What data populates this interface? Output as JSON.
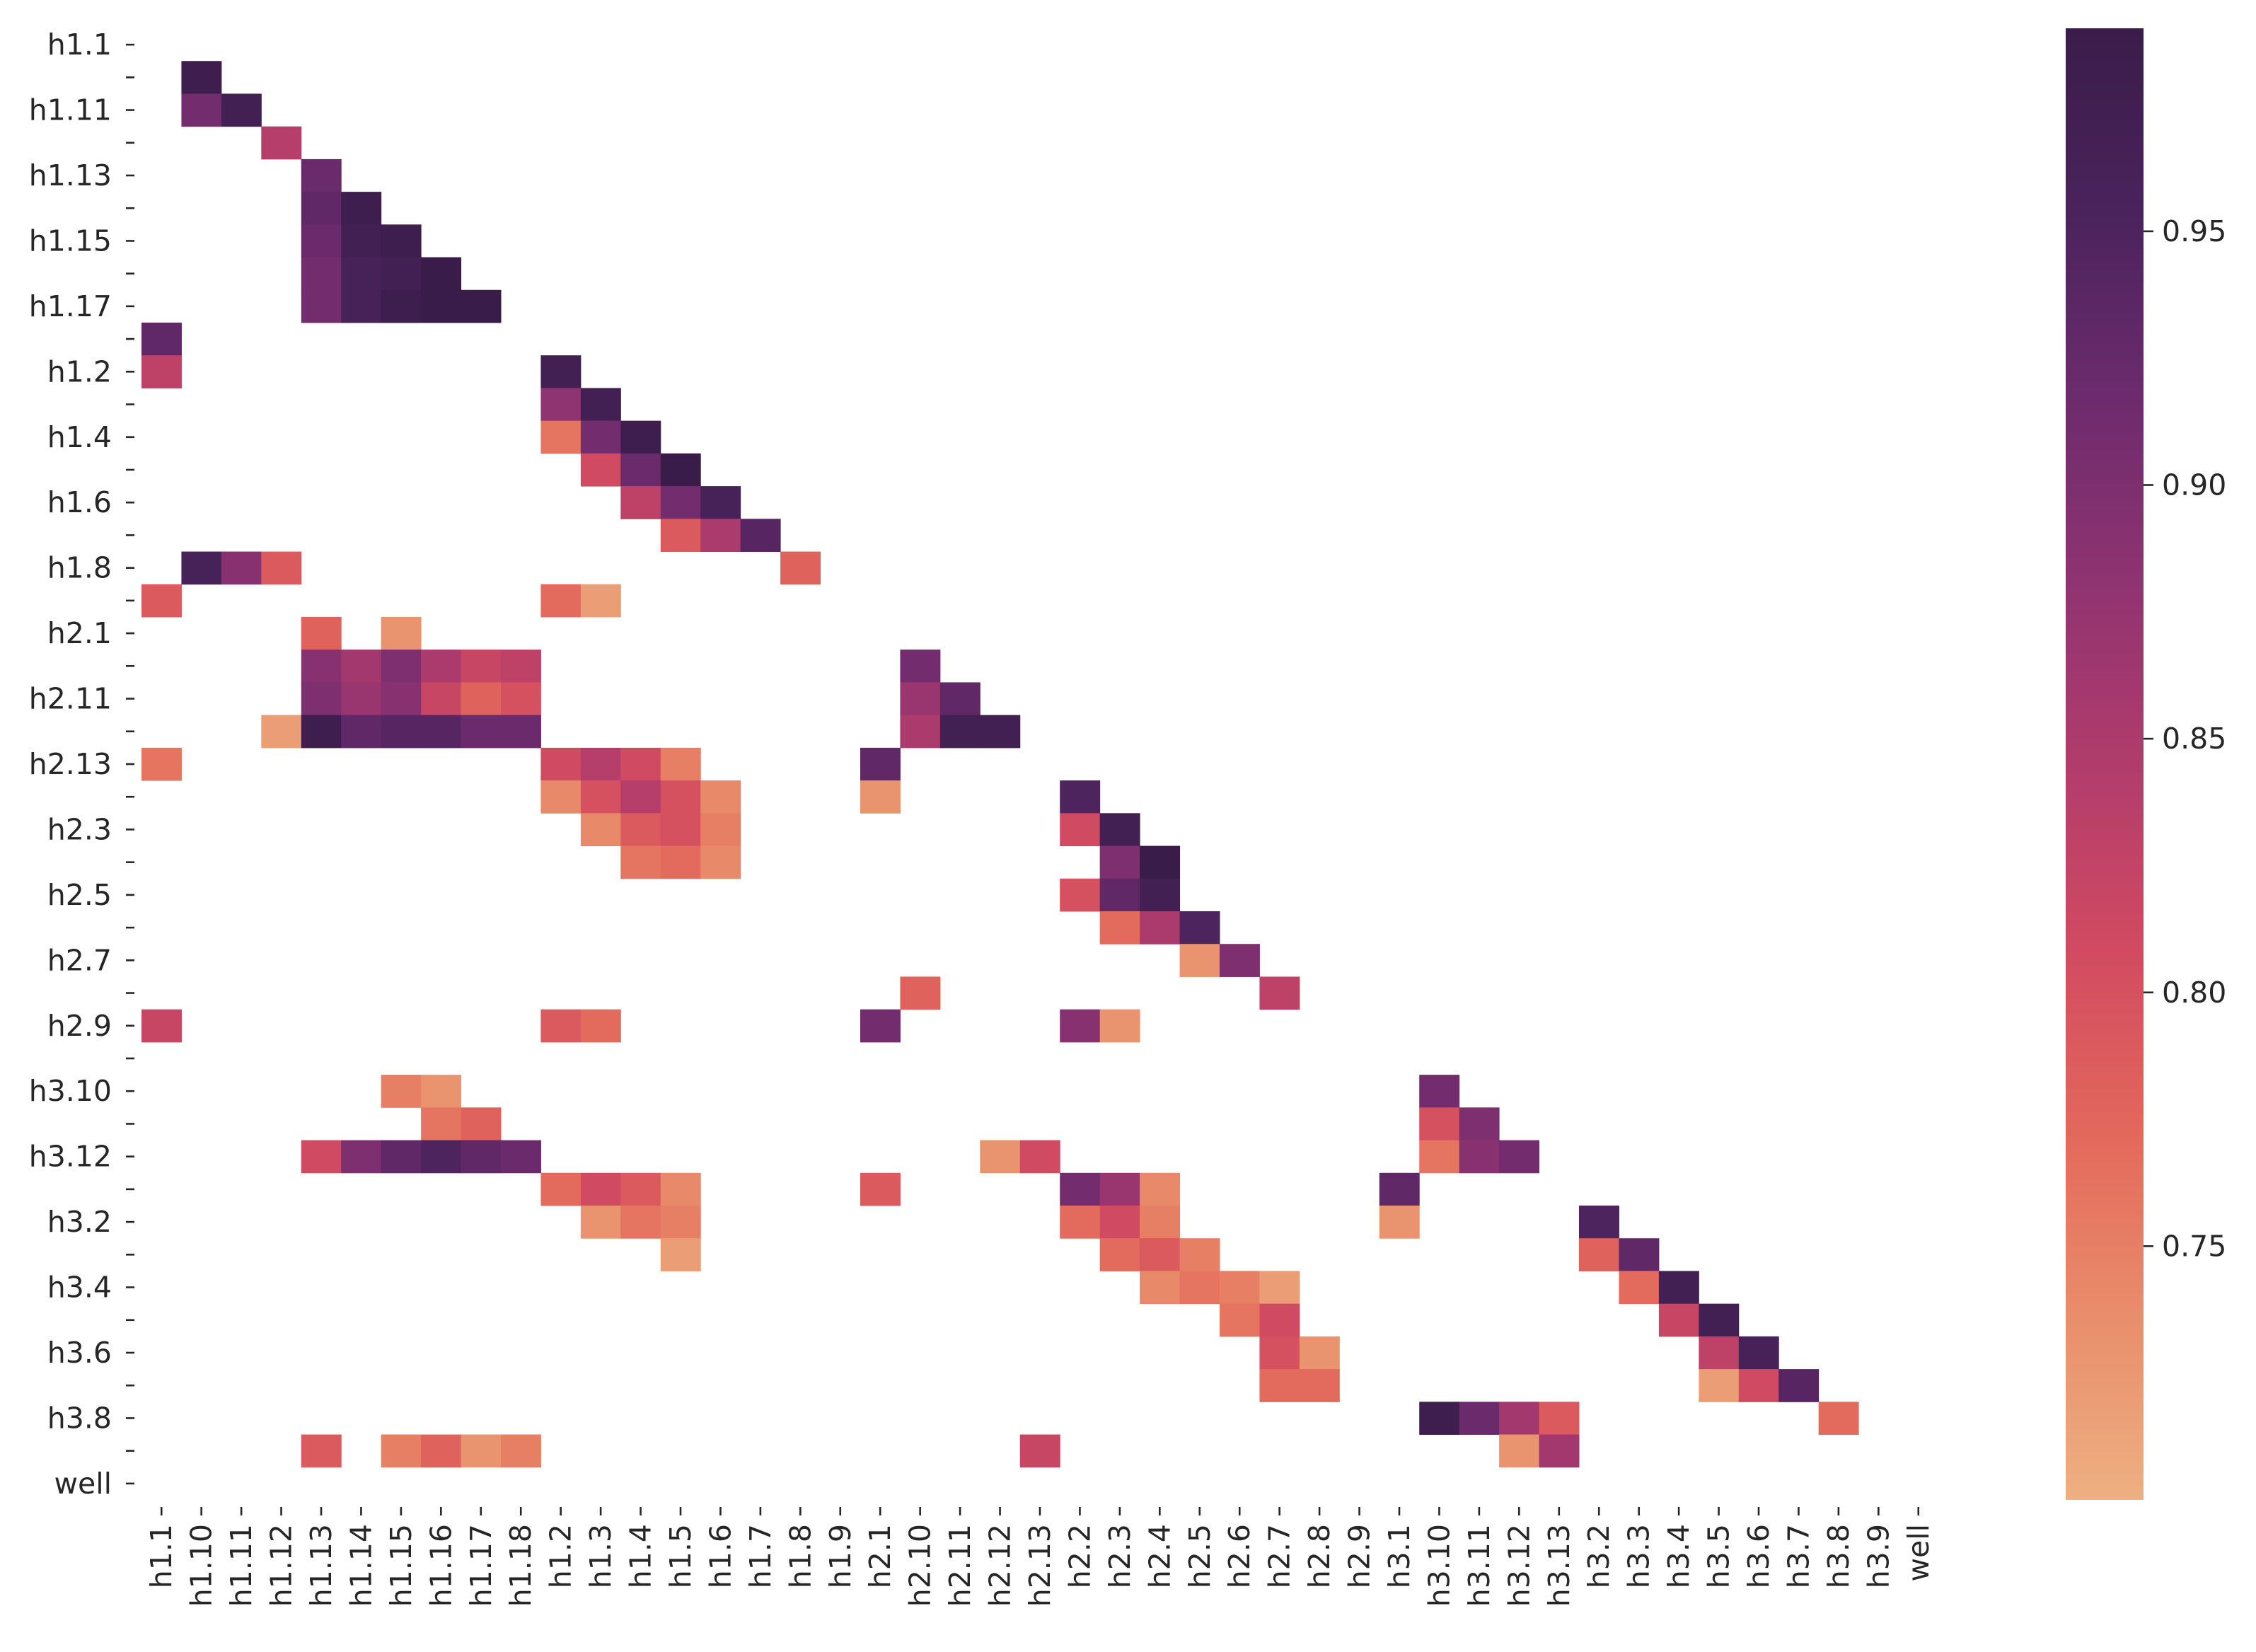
{
  "chart_data": {
    "type": "heatmap",
    "title": "",
    "xlabel": "",
    "ylabel": "",
    "x_labels": [
      "h1.1",
      "h1.10",
      "h1.11",
      "h1.12",
      "h1.13",
      "h1.14",
      "h1.15",
      "h1.16",
      "h1.17",
      "h1.18",
      "h1.2",
      "h1.3",
      "h1.4",
      "h1.5",
      "h1.6",
      "h1.7",
      "h1.8",
      "h1.9",
      "h2.1",
      "h2.10",
      "h2.11",
      "h2.12",
      "h2.13",
      "h2.2",
      "h2.3",
      "h2.4",
      "h2.5",
      "h2.6",
      "h2.7",
      "h2.8",
      "h2.9",
      "h3.1",
      "h3.10",
      "h3.11",
      "h3.12",
      "h3.13",
      "h3.2",
      "h3.3",
      "h3.4",
      "h3.5",
      "h3.6",
      "h3.7",
      "h3.8",
      "h3.9",
      "well"
    ],
    "y_labels": [
      "h1.1",
      "",
      "h1.11",
      "",
      "h1.13",
      "",
      "h1.15",
      "",
      "h1.17",
      "",
      "h1.2",
      "",
      "h1.4",
      "",
      "h1.6",
      "",
      "h1.8",
      "",
      "h2.1",
      "",
      "h2.11",
      "",
      "h2.13",
      "",
      "h2.3",
      "",
      "h2.5",
      "",
      "h2.7",
      "",
      "h2.9",
      "",
      "h3.10",
      "",
      "h3.12",
      "",
      "h3.2",
      "",
      "h3.4",
      "",
      "h3.6",
      "",
      "h3.8",
      "",
      "well"
    ],
    "row_names": [
      "h1.1",
      "h1.10",
      "h1.11",
      "h1.12",
      "h1.13",
      "h1.14",
      "h1.15",
      "h1.16",
      "h1.17",
      "h1.18",
      "h1.2",
      "h1.3",
      "h1.4",
      "h1.5",
      "h1.6",
      "h1.7",
      "h1.8",
      "h1.9",
      "h2.1",
      "h2.10",
      "h2.11",
      "h2.12",
      "h2.13",
      "h2.2",
      "h2.3",
      "h2.4",
      "h2.5",
      "h2.6",
      "h2.7",
      "h2.8",
      "h2.9",
      "h3.1",
      "h3.10",
      "h3.11",
      "h3.12",
      "h3.13",
      "h3.2",
      "h3.3",
      "h3.4",
      "h3.5",
      "h3.6",
      "h3.7",
      "h3.8",
      "h3.9",
      "well"
    ],
    "mask": "upper triangle and diagonal blank; only correlations above the threshold shown",
    "colormap": "flare",
    "colormap_stops": [
      "#edb081",
      "#e98d6b",
      "#e3685c",
      "#d14a61",
      "#b13c6c",
      "#8f3371",
      "#6c2b6d",
      "#4a235c",
      "#3a1c4a"
    ],
    "vmin": 0.7,
    "vmax": 0.99,
    "colorbar_ticks": [
      0.75,
      0.8,
      0.85,
      0.9,
      0.95
    ],
    "colorbar_tick_labels": [
      "0.75",
      "0.80",
      "0.85",
      "0.90",
      "0.95"
    ],
    "cells": [
      [
        1,
        1,
        0.98
      ],
      [
        2,
        1,
        0.91
      ],
      [
        2,
        2,
        0.97
      ],
      [
        3,
        3,
        0.84
      ],
      [
        4,
        4,
        0.92
      ],
      [
        5,
        4,
        0.93
      ],
      [
        5,
        5,
        0.98
      ],
      [
        6,
        4,
        0.92
      ],
      [
        6,
        5,
        0.97
      ],
      [
        6,
        6,
        0.98
      ],
      [
        7,
        4,
        0.91
      ],
      [
        7,
        5,
        0.96
      ],
      [
        7,
        6,
        0.97
      ],
      [
        7,
        7,
        0.99
      ],
      [
        8,
        4,
        0.91
      ],
      [
        8,
        5,
        0.96
      ],
      [
        8,
        6,
        0.98
      ],
      [
        8,
        7,
        0.99
      ],
      [
        8,
        8,
        0.99
      ],
      [
        9,
        0,
        0.93
      ],
      [
        10,
        0,
        0.83
      ],
      [
        10,
        10,
        0.97
      ],
      [
        11,
        10,
        0.88
      ],
      [
        11,
        11,
        0.97
      ],
      [
        12,
        10,
        0.76
      ],
      [
        12,
        11,
        0.91
      ],
      [
        12,
        12,
        0.98
      ],
      [
        13,
        11,
        0.81
      ],
      [
        13,
        12,
        0.92
      ],
      [
        13,
        13,
        0.99
      ],
      [
        14,
        12,
        0.83
      ],
      [
        14,
        13,
        0.91
      ],
      [
        14,
        14,
        0.96
      ],
      [
        15,
        13,
        0.79
      ],
      [
        15,
        14,
        0.85
      ],
      [
        15,
        15,
        0.94
      ],
      [
        16,
        1,
        0.96
      ],
      [
        16,
        2,
        0.89
      ],
      [
        16,
        3,
        0.79
      ],
      [
        16,
        16,
        0.78
      ],
      [
        17,
        0,
        0.79
      ],
      [
        17,
        10,
        0.77
      ],
      [
        17,
        11,
        0.72
      ],
      [
        18,
        4,
        0.78
      ],
      [
        18,
        6,
        0.73
      ],
      [
        19,
        4,
        0.89
      ],
      [
        19,
        5,
        0.86
      ],
      [
        19,
        6,
        0.9
      ],
      [
        19,
        7,
        0.85
      ],
      [
        19,
        8,
        0.82
      ],
      [
        19,
        9,
        0.83
      ],
      [
        19,
        19,
        0.91
      ],
      [
        20,
        4,
        0.9
      ],
      [
        20,
        5,
        0.87
      ],
      [
        20,
        6,
        0.89
      ],
      [
        20,
        7,
        0.82
      ],
      [
        20,
        8,
        0.78
      ],
      [
        20,
        9,
        0.8
      ],
      [
        20,
        19,
        0.87
      ],
      [
        20,
        20,
        0.93
      ],
      [
        21,
        3,
        0.72
      ],
      [
        21,
        4,
        0.98
      ],
      [
        21,
        5,
        0.93
      ],
      [
        21,
        6,
        0.94
      ],
      [
        21,
        7,
        0.94
      ],
      [
        21,
        8,
        0.92
      ],
      [
        21,
        9,
        0.92
      ],
      [
        21,
        19,
        0.85
      ],
      [
        21,
        20,
        0.97
      ],
      [
        21,
        21,
        0.97
      ],
      [
        22,
        0,
        0.76
      ],
      [
        22,
        10,
        0.81
      ],
      [
        22,
        11,
        0.84
      ],
      [
        22,
        12,
        0.81
      ],
      [
        22,
        13,
        0.75
      ],
      [
        22,
        18,
        0.93
      ],
      [
        23,
        10,
        0.74
      ],
      [
        23,
        11,
        0.8
      ],
      [
        23,
        12,
        0.84
      ],
      [
        23,
        13,
        0.8
      ],
      [
        23,
        14,
        0.74
      ],
      [
        23,
        18,
        0.73
      ],
      [
        23,
        23,
        0.95
      ],
      [
        24,
        11,
        0.74
      ],
      [
        24,
        12,
        0.79
      ],
      [
        24,
        13,
        0.8
      ],
      [
        24,
        14,
        0.75
      ],
      [
        24,
        23,
        0.81
      ],
      [
        24,
        24,
        0.97
      ],
      [
        25,
        12,
        0.76
      ],
      [
        25,
        13,
        0.77
      ],
      [
        25,
        14,
        0.74
      ],
      [
        25,
        24,
        0.9
      ],
      [
        25,
        25,
        0.99
      ],
      [
        26,
        23,
        0.8
      ],
      [
        26,
        24,
        0.93
      ],
      [
        26,
        25,
        0.97
      ],
      [
        27,
        24,
        0.77
      ],
      [
        27,
        25,
        0.85
      ],
      [
        27,
        26,
        0.95
      ],
      [
        28,
        26,
        0.73
      ],
      [
        28,
        27,
        0.9
      ],
      [
        29,
        19,
        0.78
      ],
      [
        29,
        28,
        0.83
      ],
      [
        30,
        0,
        0.82
      ],
      [
        30,
        10,
        0.79
      ],
      [
        30,
        11,
        0.77
      ],
      [
        30,
        18,
        0.91
      ],
      [
        30,
        23,
        0.89
      ],
      [
        30,
        24,
        0.73
      ],
      [
        32,
        6,
        0.75
      ],
      [
        32,
        7,
        0.73
      ],
      [
        32,
        32,
        0.91
      ],
      [
        33,
        7,
        0.76
      ],
      [
        33,
        8,
        0.78
      ],
      [
        33,
        32,
        0.8
      ],
      [
        33,
        33,
        0.9
      ],
      [
        34,
        4,
        0.81
      ],
      [
        34,
        5,
        0.9
      ],
      [
        34,
        6,
        0.93
      ],
      [
        34,
        7,
        0.95
      ],
      [
        34,
        8,
        0.93
      ],
      [
        34,
        9,
        0.92
      ],
      [
        34,
        21,
        0.73
      ],
      [
        34,
        22,
        0.81
      ],
      [
        34,
        32,
        0.76
      ],
      [
        34,
        33,
        0.89
      ],
      [
        34,
        34,
        0.91
      ],
      [
        35,
        10,
        0.77
      ],
      [
        35,
        11,
        0.81
      ],
      [
        35,
        12,
        0.79
      ],
      [
        35,
        13,
        0.74
      ],
      [
        35,
        18,
        0.79
      ],
      [
        35,
        23,
        0.91
      ],
      [
        35,
        24,
        0.87
      ],
      [
        35,
        25,
        0.74
      ],
      [
        35,
        31,
        0.93
      ],
      [
        36,
        11,
        0.73
      ],
      [
        36,
        12,
        0.76
      ],
      [
        36,
        13,
        0.75
      ],
      [
        36,
        23,
        0.77
      ],
      [
        36,
        24,
        0.81
      ],
      [
        36,
        25,
        0.75
      ],
      [
        36,
        31,
        0.73
      ],
      [
        36,
        36,
        0.95
      ],
      [
        37,
        13,
        0.72
      ],
      [
        37,
        24,
        0.77
      ],
      [
        37,
        25,
        0.79
      ],
      [
        37,
        26,
        0.75
      ],
      [
        37,
        36,
        0.78
      ],
      [
        37,
        37,
        0.93
      ],
      [
        38,
        25,
        0.74
      ],
      [
        38,
        26,
        0.76
      ],
      [
        38,
        27,
        0.75
      ],
      [
        38,
        28,
        0.72
      ],
      [
        38,
        37,
        0.77
      ],
      [
        38,
        38,
        0.97
      ],
      [
        39,
        27,
        0.76
      ],
      [
        39,
        28,
        0.81
      ],
      [
        39,
        38,
        0.82
      ],
      [
        39,
        39,
        0.97
      ],
      [
        40,
        28,
        0.8
      ],
      [
        40,
        29,
        0.73
      ],
      [
        40,
        39,
        0.83
      ],
      [
        40,
        40,
        0.96
      ],
      [
        41,
        28,
        0.77
      ],
      [
        41,
        29,
        0.77
      ],
      [
        41,
        39,
        0.72
      ],
      [
        41,
        40,
        0.81
      ],
      [
        41,
        41,
        0.94
      ],
      [
        42,
        32,
        0.98
      ],
      [
        42,
        33,
        0.92
      ],
      [
        42,
        34,
        0.86
      ],
      [
        42,
        35,
        0.79
      ],
      [
        42,
        42,
        0.77
      ],
      [
        43,
        4,
        0.79
      ],
      [
        43,
        6,
        0.75
      ],
      [
        43,
        7,
        0.78
      ],
      [
        43,
        8,
        0.73
      ],
      [
        43,
        9,
        0.75
      ],
      [
        43,
        22,
        0.82
      ],
      [
        43,
        34,
        0.73
      ],
      [
        43,
        35,
        0.86
      ]
    ]
  }
}
